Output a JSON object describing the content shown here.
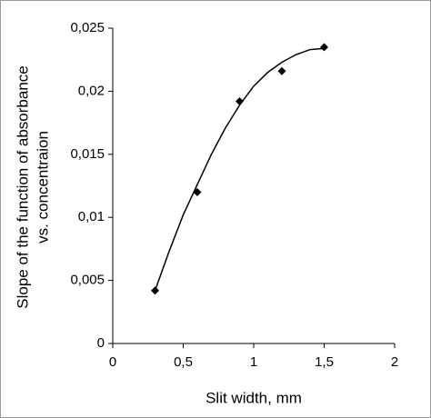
{
  "chart_data": {
    "type": "scatter",
    "xlabel": "Slit width, mm",
    "ylabel": [
      "Slope of the function of absorbance",
      "vs. concentraion"
    ],
    "x": [
      0.3,
      0.6,
      0.9,
      1.2,
      1.5
    ],
    "series": [
      {
        "color": "#000000",
        "values": [
          0.0042,
          0.012,
          0.0192,
          0.0216,
          0.0235
        ]
      }
    ],
    "trendline": {
      "color": "#000000",
      "x": [
        0.3,
        0.4,
        0.5,
        0.6,
        0.7,
        0.8,
        0.9,
        1.0,
        1.1,
        1.2,
        1.3,
        1.4,
        1.5
      ],
      "values": [
        0.0042,
        0.0073,
        0.0102,
        0.0126,
        0.015,
        0.0171,
        0.0189,
        0.0204,
        0.0215,
        0.0223,
        0.0229,
        0.0233,
        0.0234
      ]
    },
    "xlim": [
      0,
      2
    ],
    "xticks": [
      0,
      {
        "value": 0.5,
        "label": "0,5"
      },
      1,
      {
        "value": 1.5,
        "label": "1,5"
      },
      2
    ],
    "ylim": [
      0,
      0.025
    ],
    "yticks": [
      0,
      {
        "value": 0.005,
        "label": "0,005"
      },
      {
        "value": 0.01,
        "label": "0,01"
      },
      {
        "value": 0.015,
        "label": "0,015"
      },
      {
        "value": 0.02,
        "label": "0,02"
      },
      {
        "value": 0.025,
        "label": "0,025"
      }
    ],
    "grid": false
  }
}
